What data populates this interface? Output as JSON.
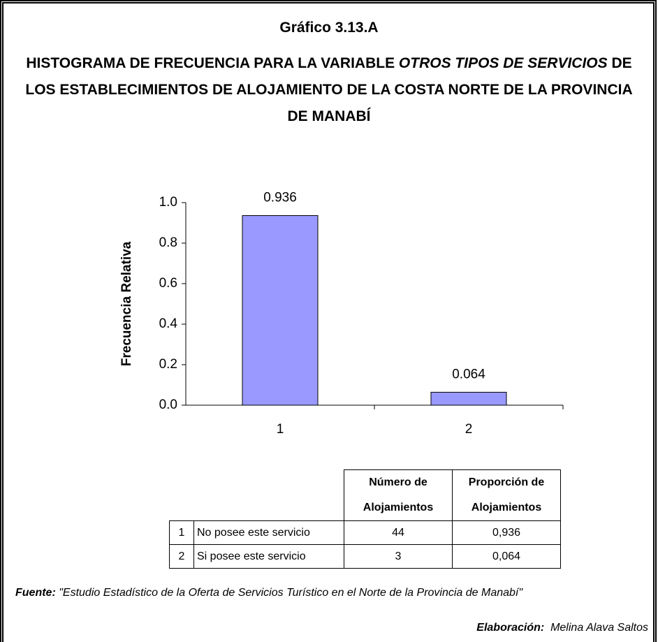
{
  "header": {
    "figure_number": "Gráfico 3.13.A",
    "title_prefix": "HISTOGRAMA DE FRECUENCIA PARA LA VARIABLE ",
    "title_variable": "OTROS TIPOS DE SERVICIOS",
    "title_suffix": " DE LOS ESTABLECIMIENTOS DE ALOJAMIENTO DE LA COSTA NORTE DE LA PROVINCIA DE MANABÍ"
  },
  "chart_data": {
    "type": "bar",
    "y_label": "Frecuencia Relativa",
    "categories": [
      "1",
      "2"
    ],
    "values": [
      0.936,
      0.064
    ],
    "color": "#9999ff",
    "ylim": [
      0,
      1
    ],
    "yticks": [
      {
        "value": 0,
        "label": "0.0"
      },
      0.2,
      0.4,
      0.6,
      0.8,
      {
        "value": 1,
        "label": "1.0"
      }
    ]
  },
  "table": {
    "header": [
      "Número de Alojamientos",
      "Proporción de Alojamientos"
    ],
    "rows": [
      [
        "1",
        "No posee este servicio",
        "44",
        "0,936"
      ],
      [
        "2",
        "Si posee este servicio",
        "3",
        "0,064"
      ]
    ]
  },
  "footer": {
    "source_label": "Fuente:",
    "source_text": " \"Estudio Estadístico de la Oferta de Servicios Turístico en el Norte de la Provincia de Manabí\"",
    "credit_label": "Elaboración:",
    "credit_text": "  Melina Alava Saltos"
  }
}
